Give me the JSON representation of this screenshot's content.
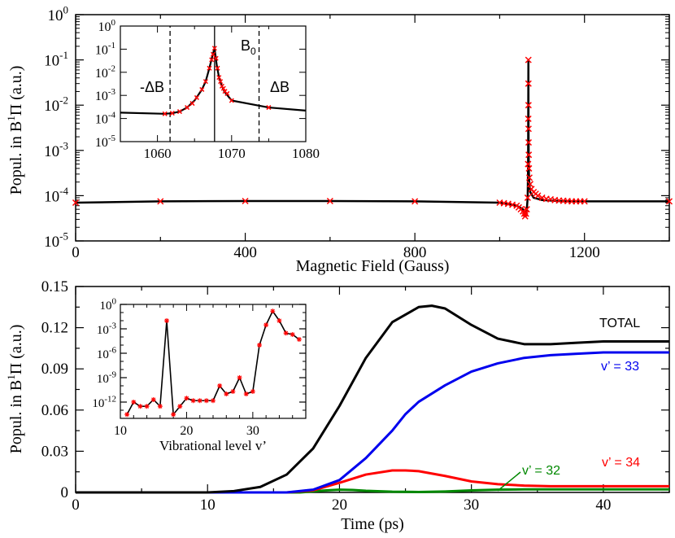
{
  "colors": {
    "black": "#000000",
    "red": "#ff0000",
    "blue": "#0000ee",
    "green": "#008800"
  },
  "chart_data": [
    {
      "id": "top",
      "type": "line",
      "xlabel": "Magnetic Field (Gauss)",
      "ylabel_parts": [
        "Popul. in B",
        "1",
        "Π (a.u.)"
      ],
      "xscale": "linear",
      "yscale": "log",
      "xlim": [
        0,
        1400
      ],
      "ylim_exp": [
        -5,
        0
      ],
      "xticks": [
        0,
        400,
        800,
        1200
      ],
      "ytick_exps": [
        -5,
        -4,
        -3,
        -2,
        -1,
        0
      ],
      "series": [
        {
          "name": "population",
          "color": "black",
          "x": [
            0,
            200,
            400,
            600,
            800,
            1000,
            1040,
            1055,
            1060,
            1064,
            1066,
            1067,
            1067.7,
            1068,
            1068.5,
            1069,
            1070,
            1072,
            1080,
            1100,
            1150,
            1200,
            1400
          ],
          "y": [
            7e-05,
            7.5e-05,
            7.6e-05,
            7.6e-05,
            7.5e-05,
            7e-05,
            6e-05,
            5e-05,
            3.5e-05,
            5e-05,
            9e-05,
            0.0005,
            0.1,
            0.003,
            0.0006,
            0.0003,
            0.00018,
            0.00012,
            9e-05,
            8e-05,
            7.5e-05,
            7.5e-05,
            7.5e-05
          ]
        }
      ],
      "markers": {
        "color": "red",
        "x": [
          0,
          200,
          400,
          600,
          800,
          1000,
          1010,
          1020,
          1030,
          1040,
          1045,
          1050,
          1055,
          1058,
          1060,
          1062,
          1064,
          1066,
          1067,
          1067.5,
          1067.7,
          1067.8,
          1067.9,
          1068,
          1068.2,
          1068.5,
          1069,
          1070,
          1072,
          1075,
          1080,
          1085,
          1090,
          1100,
          1110,
          1120,
          1130,
          1140,
          1150,
          1160,
          1170,
          1180,
          1190,
          1200,
          1400
        ],
        "y": [
          7e-05,
          7.5e-05,
          7.6e-05,
          7.6e-05,
          7.5e-05,
          7e-05,
          6.8e-05,
          6.6e-05,
          6.3e-05,
          6e-05,
          5.5e-05,
          5e-05,
          4.5e-05,
          4e-05,
          3.5e-05,
          4e-05,
          5e-05,
          9e-05,
          0.0005,
          0.005,
          0.1,
          0.03,
          0.01,
          0.003,
          0.0015,
          0.0008,
          0.0004,
          0.00025,
          0.00018,
          0.00014,
          0.00012,
          0.00011,
          0.0001,
          9e-05,
          8.5e-05,
          8.3e-05,
          8e-05,
          7.8e-05,
          7.7e-05,
          7.6e-05,
          7.5e-05,
          7.5e-05,
          7.5e-05,
          7.5e-05,
          7.5e-05
        ]
      }
    },
    {
      "id": "top_inset",
      "type": "line",
      "xscale": "linear",
      "yscale": "log",
      "xlim": [
        1055,
        1080
      ],
      "ylim_exp": [
        -5,
        0
      ],
      "xticks": [
        1060,
        1070,
        1080
      ],
      "ytick_exps": [
        -5,
        -4,
        -3,
        -2,
        -1,
        0
      ],
      "annotations": [
        {
          "text": "-ΔB",
          "x_line": 1061.7,
          "style": "dashed"
        },
        {
          "text": "B",
          "sub": "0",
          "x_line": 1067.7,
          "style": "solid"
        },
        {
          "text": "ΔB",
          "x_line": 1073.7,
          "style": "dashed"
        }
      ],
      "series": [
        {
          "name": "population",
          "color": "black",
          "x": [
            1055,
            1061,
            1062,
            1063,
            1064,
            1065,
            1066,
            1066.5,
            1067,
            1067.4,
            1067.7,
            1068,
            1068.3,
            1068.7,
            1069,
            1070,
            1075,
            1080
          ],
          "y": [
            0.00018,
            0.00016,
            0.00017,
            0.0002,
            0.0003,
            0.0006,
            0.0018,
            0.004,
            0.015,
            0.05,
            0.11,
            0.02,
            0.006,
            0.0025,
            0.0015,
            0.0006,
            0.0003,
            0.00022
          ]
        }
      ],
      "markers": {
        "color": "red",
        "x": [
          1061,
          1062,
          1063,
          1064,
          1064.7,
          1065.3,
          1066,
          1066.5,
          1067,
          1067.3,
          1067.5,
          1067.7,
          1067.9,
          1068.1,
          1068.3,
          1068.5,
          1068.7,
          1068.9,
          1069.1,
          1069.4,
          1070,
          1075
        ],
        "y": [
          0.00016,
          0.00017,
          0.0002,
          0.0003,
          0.00045,
          0.0008,
          0.0018,
          0.004,
          0.015,
          0.035,
          0.06,
          0.11,
          0.04,
          0.015,
          0.006,
          0.004,
          0.0025,
          0.002,
          0.0015,
          0.0012,
          0.0006,
          0.0003
        ]
      }
    },
    {
      "id": "bottom",
      "type": "line",
      "xlabel": "Time (ps)",
      "ylabel_parts": [
        "Popul. in B",
        "1",
        "Π (a.u.)"
      ],
      "xlim": [
        0,
        45
      ],
      "ylim": [
        0,
        0.15
      ],
      "xticks": [
        0,
        10,
        20,
        30,
        40
      ],
      "yticks": [
        0,
        0.03,
        0.06,
        0.09,
        0.12,
        0.15
      ],
      "ytick_labels": [
        "0",
        "0.03",
        "0.06",
        "0.09",
        "0.12",
        "0.15"
      ],
      "series": [
        {
          "name": "TOTAL",
          "color": "black",
          "x": [
            0,
            10,
            12,
            14,
            16,
            18,
            20,
            22,
            24,
            26,
            27,
            28,
            30,
            32,
            34,
            36,
            38,
            40,
            45
          ],
          "y": [
            0,
            0,
            0.001,
            0.004,
            0.013,
            0.032,
            0.063,
            0.098,
            0.124,
            0.135,
            0.136,
            0.134,
            0.122,
            0.112,
            0.108,
            0.108,
            0.109,
            0.11,
            0.11
          ]
        },
        {
          "name": "v’ = 33",
          "color": "blue",
          "x": [
            0,
            16,
            18,
            20,
            22,
            24,
            25,
            26,
            28,
            30,
            32,
            34,
            36,
            38,
            40,
            42,
            45
          ],
          "y": [
            0,
            0,
            0.002,
            0.009,
            0.025,
            0.045,
            0.057,
            0.066,
            0.078,
            0.088,
            0.094,
            0.098,
            0.1,
            0.101,
            0.102,
            0.102,
            0.102
          ]
        },
        {
          "name": "v’ = 34",
          "color": "red",
          "x": [
            0,
            16,
            18,
            20,
            22,
            24,
            25,
            26,
            28,
            30,
            32,
            34,
            36,
            38,
            40,
            45
          ],
          "y": [
            0,
            0,
            0.0015,
            0.007,
            0.013,
            0.016,
            0.016,
            0.0155,
            0.012,
            0.008,
            0.006,
            0.005,
            0.0045,
            0.0045,
            0.0045,
            0.0045
          ]
        },
        {
          "name": "v’ = 32",
          "color": "green",
          "x": [
            0,
            17,
            19,
            20,
            21,
            22,
            24,
            26,
            28,
            30,
            32,
            34,
            36,
            40,
            45
          ],
          "y": [
            0,
            0,
            0.0015,
            0.002,
            0.0018,
            0.0012,
            0.0005,
            0.0003,
            0.0007,
            0.0015,
            0.002,
            0.0022,
            0.0022,
            0.0022,
            0.0022
          ]
        }
      ],
      "series_labels": [
        "TOTAL",
        "v’ = 33",
        "v’ = 34",
        "v’ = 32"
      ]
    },
    {
      "id": "bottom_inset",
      "type": "line",
      "xlabel": "Vibrational level v’",
      "yscale": "log",
      "xlim": [
        10,
        38
      ],
      "ylim_exp": [
        -14,
        0
      ],
      "xticks": [
        10,
        20,
        30
      ],
      "ytick_exps": [
        -12,
        -9,
        -6,
        -3,
        0
      ],
      "series": [
        {
          "name": "vibrational_population",
          "color": "black",
          "x": [
            11,
            12,
            13,
            14,
            15,
            16,
            17,
            18,
            19,
            20,
            21,
            22,
            23,
            24,
            25,
            26,
            27,
            28,
            29,
            30,
            31,
            32,
            33,
            34,
            35,
            36,
            37
          ],
          "y": [
            3e-14,
            1e-12,
            3e-13,
            3e-13,
            2e-12,
            3e-13,
            0.01,
            3e-14,
            3e-13,
            3e-12,
            1.5e-12,
            1.5e-12,
            1.5e-12,
            1.5e-12,
            1e-10,
            1e-11,
            2e-11,
            1e-09,
            1e-11,
            2e-11,
            1e-05,
            0.003,
            0.15,
            0.01,
            0.0003,
            0.0002,
            5e-05
          ]
        }
      ]
    }
  ]
}
